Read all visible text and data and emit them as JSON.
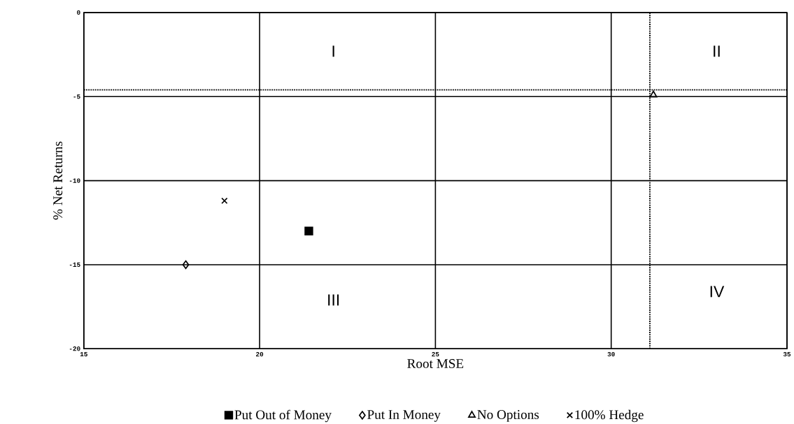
{
  "chart_data": {
    "type": "scatter",
    "xlabel": "Root MSE",
    "ylabel": "% Net Returns",
    "series": [
      {
        "name": "Put Out of Money",
        "color": "#000000",
        "marker": "square",
        "x": [
          21.4
        ],
        "values": [
          -13.0
        ]
      },
      {
        "name": "Put In Money",
        "color": "#000000",
        "marker": "diamond",
        "x": [
          17.9
        ],
        "values": [
          -15.0
        ]
      },
      {
        "name": "No Options",
        "color": "#000000",
        "marker": "triangle",
        "x": [
          31.2
        ],
        "values": [
          -4.9
        ]
      },
      {
        "name": "100% Hedge",
        "color": "#000000",
        "marker": "cross",
        "x": [
          19.0
        ],
        "values": [
          -11.2
        ]
      }
    ],
    "xlim": [
      15,
      35
    ],
    "xticks": [
      15,
      20,
      25,
      30,
      35
    ],
    "ylim": [
      -20,
      0
    ],
    "yticks": [
      -20,
      -15,
      -10,
      -5,
      0
    ],
    "grid": true,
    "legend": "bottom",
    "ref_lines": [
      {
        "axis": "x",
        "value": 31.1,
        "line_style": "dotted"
      },
      {
        "axis": "y",
        "value": -4.6,
        "line_style": "dotted"
      }
    ],
    "annotations": [
      "I",
      "II",
      "III",
      "IV"
    ]
  }
}
